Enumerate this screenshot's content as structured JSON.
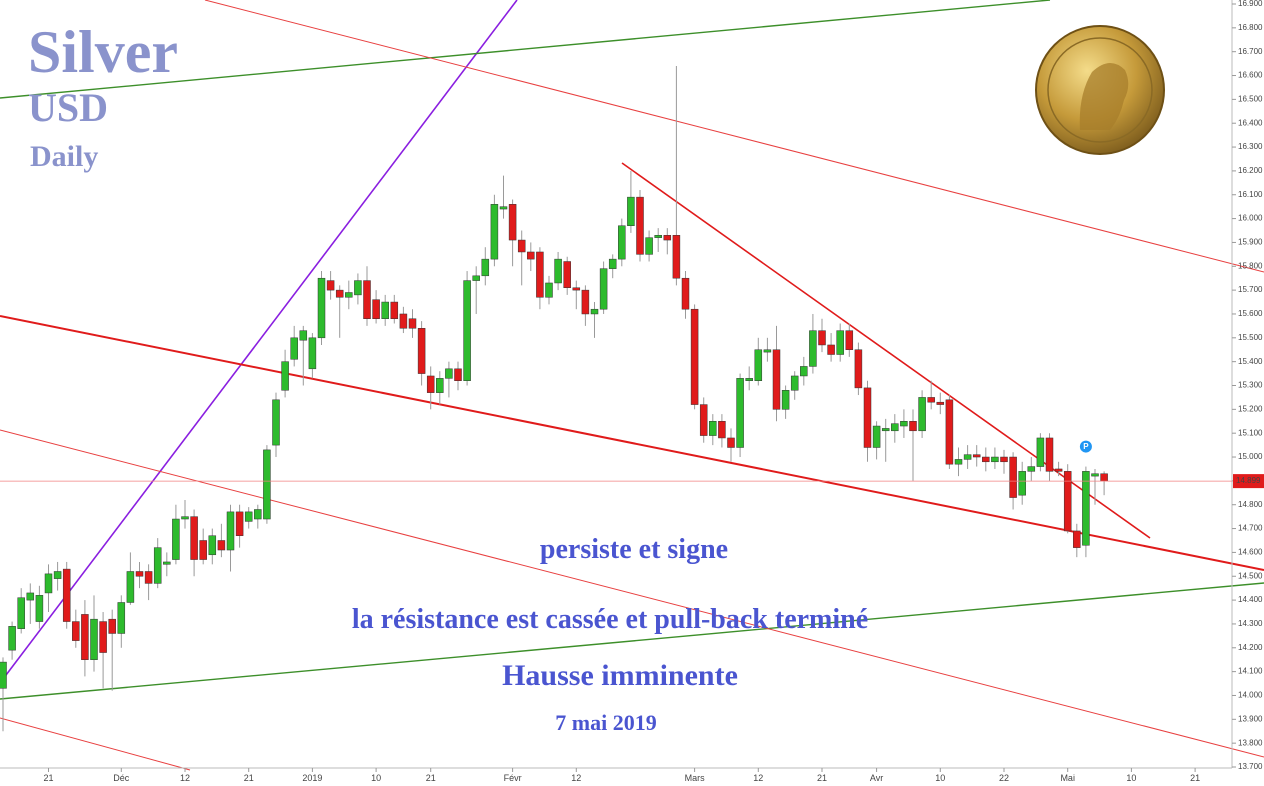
{
  "chart_data": {
    "type": "candlestick",
    "title": "Silver",
    "currency": "USD",
    "interval": "Daily",
    "annotations": [
      "persiste et signe",
      "la résistance est cassée et pull-back terminé",
      "Hausse imminente",
      "7 mai 2019"
    ],
    "marker_label": "P",
    "last_price": 14.899,
    "up_color": "#2dbb2d",
    "down_color": "#e01b1b",
    "ylim": [
      13.7,
      16.9
    ],
    "yticks": [
      {
        "value": 13.7,
        "label": "13.700"
      },
      {
        "value": 13.8,
        "label": "13.800"
      },
      {
        "value": 13.9,
        "label": "13.900"
      },
      {
        "value": 14.0,
        "label": "14.000"
      },
      {
        "value": 14.1,
        "label": "14.100"
      },
      {
        "value": 14.2,
        "label": "14.200"
      },
      {
        "value": 14.3,
        "label": "14.300"
      },
      {
        "value": 14.4,
        "label": "14.400"
      },
      {
        "value": 14.5,
        "label": "14.500"
      },
      {
        "value": 14.6,
        "label": "14.600"
      },
      {
        "value": 14.7,
        "label": "14.700"
      },
      {
        "value": 14.8,
        "label": "14.800"
      },
      {
        "value": 14.9,
        "label": "14.900"
      },
      {
        "value": 15.0,
        "label": "15.000"
      },
      {
        "value": 15.1,
        "label": "15.100"
      },
      {
        "value": 15.2,
        "label": "15.200"
      },
      {
        "value": 15.3,
        "label": "15.300"
      },
      {
        "value": 15.4,
        "label": "15.400"
      },
      {
        "value": 15.5,
        "label": "15.500"
      },
      {
        "value": 15.6,
        "label": "15.600"
      },
      {
        "value": 15.7,
        "label": "15.700"
      },
      {
        "value": 15.8,
        "label": "15.800"
      },
      {
        "value": 15.9,
        "label": "15.900"
      },
      {
        "value": 16.0,
        "label": "16.000"
      },
      {
        "value": 16.1,
        "label": "16.100"
      },
      {
        "value": 16.2,
        "label": "16.200"
      },
      {
        "value": 16.3,
        "label": "16.300"
      },
      {
        "value": 16.4,
        "label": "16.400"
      },
      {
        "value": 16.5,
        "label": "16.500"
      },
      {
        "value": 16.6,
        "label": "16.600"
      },
      {
        "value": 16.7,
        "label": "16.700"
      },
      {
        "value": 16.8,
        "label": "16.800"
      },
      {
        "value": 16.9,
        "label": "16.900"
      }
    ],
    "categories": [
      null,
      null,
      null,
      null,
      null,
      "21",
      null,
      null,
      null,
      null,
      null,
      null,
      null,
      "Déc",
      null,
      null,
      null,
      null,
      null,
      null,
      "12",
      null,
      null,
      null,
      null,
      null,
      null,
      "21",
      null,
      null,
      null,
      null,
      null,
      null,
      "2019",
      null,
      null,
      null,
      null,
      null,
      null,
      "10",
      null,
      null,
      null,
      null,
      null,
      "21",
      null,
      null,
      null,
      null,
      null,
      null,
      null,
      null,
      "Févr",
      null,
      null,
      null,
      null,
      null,
      null,
      "12",
      null,
      null,
      null,
      null,
      null,
      null,
      null,
      null,
      null,
      null,
      null,
      null,
      "Mars",
      null,
      null,
      null,
      null,
      null,
      null,
      "12",
      null,
      null,
      null,
      null,
      null,
      null,
      "21",
      null,
      null,
      null,
      null,
      null,
      "Avr",
      null,
      null,
      null,
      null,
      null,
      null,
      "10",
      null,
      null,
      null,
      null,
      null,
      null,
      "22",
      null,
      null,
      null,
      null,
      null,
      null,
      "Mai",
      null,
      null,
      null,
      null,
      null,
      null,
      "10",
      null,
      null,
      null,
      null,
      null,
      null,
      "21",
      null,
      null,
      null,
      null,
      null
    ],
    "open": [
      14.03,
      14.19,
      14.28,
      14.4,
      14.31,
      14.43,
      14.49,
      14.53,
      14.31,
      14.34,
      14.15,
      14.31,
      14.32,
      14.26,
      14.39,
      14.52,
      14.52,
      14.47,
      14.55,
      14.57,
      14.74,
      14.75,
      14.65,
      14.59,
      14.65,
      14.61,
      14.77,
      14.73,
      14.74,
      14.74,
      15.05,
      15.28,
      15.41,
      15.49,
      15.37,
      15.5,
      15.74,
      15.7,
      15.67,
      15.68,
      15.74,
      15.66,
      15.58,
      15.65,
      15.6,
      15.58,
      15.54,
      15.34,
      15.27,
      15.33,
      15.37,
      15.32,
      15.74,
      15.76,
      15.83,
      16.04,
      16.06,
      15.91,
      15.86,
      15.86,
      15.67,
      15.73,
      15.82,
      15.71,
      15.7,
      15.6,
      15.62,
      15.79,
      15.83,
      15.97,
      16.09,
      15.85,
      15.92,
      15.93,
      15.93,
      15.75,
      15.62,
      15.22,
      15.09,
      15.15,
      15.08,
      15.04,
      15.32,
      15.32,
      15.44,
      15.45,
      15.2,
      15.28,
      15.34,
      15.38,
      15.53,
      15.47,
      15.43,
      15.53,
      15.45,
      15.29,
      15.04,
      15.11,
      15.11,
      15.13,
      15.15,
      15.11,
      15.25,
      15.23,
      15.24,
      14.97,
      14.99,
      15.01,
      15.0,
      14.98,
      15.0,
      15.0,
      14.84,
      14.94,
      14.96,
      15.08,
      14.95,
      14.94,
      14.69,
      14.63,
      14.92,
      14.93,
      null,
      null,
      null,
      null,
      null,
      null,
      null,
      null,
      null,
      null,
      null,
      null,
      null,
      null,
      null
    ],
    "high": [
      14.16,
      14.31,
      14.45,
      14.47,
      14.46,
      14.55,
      14.56,
      14.56,
      14.36,
      14.4,
      14.42,
      14.35,
      14.36,
      14.42,
      14.6,
      14.56,
      14.55,
      14.66,
      14.6,
      14.8,
      14.82,
      14.78,
      14.7,
      14.7,
      14.72,
      14.8,
      14.8,
      14.79,
      14.8,
      15.05,
      15.27,
      15.45,
      15.55,
      15.55,
      15.52,
      15.78,
      15.78,
      15.72,
      15.74,
      15.77,
      15.8,
      15.7,
      15.68,
      15.68,
      15.63,
      15.62,
      15.57,
      15.38,
      15.36,
      15.4,
      15.4,
      15.78,
      15.8,
      15.88,
      16.1,
      16.18,
      16.08,
      15.95,
      15.9,
      15.88,
      15.76,
      15.86,
      15.84,
      15.74,
      15.72,
      15.65,
      15.82,
      15.85,
      16.0,
      16.2,
      16.12,
      15.95,
      15.96,
      15.96,
      16.64,
      15.78,
      15.64,
      15.25,
      15.18,
      15.18,
      15.12,
      15.35,
      15.38,
      15.5,
      15.5,
      15.55,
      15.3,
      15.36,
      15.42,
      15.6,
      15.58,
      15.52,
      15.56,
      15.56,
      15.48,
      15.32,
      15.15,
      15.16,
      15.18,
      15.2,
      15.2,
      15.28,
      15.32,
      15.27,
      15.26,
      15.04,
      15.05,
      15.05,
      15.04,
      15.04,
      15.03,
      15.02,
      14.98,
      15.0,
      15.1,
      15.1,
      14.98,
      14.97,
      14.72,
      14.96,
      14.95,
      14.94,
      null,
      null,
      null,
      null,
      null,
      null,
      null,
      null,
      null,
      null,
      null,
      null,
      null,
      null,
      null
    ],
    "low": [
      13.85,
      14.15,
      14.26,
      14.3,
      14.28,
      14.35,
      14.44,
      14.28,
      14.2,
      14.08,
      14.1,
      14.03,
      14.02,
      14.2,
      14.38,
      14.45,
      14.4,
      14.45,
      14.5,
      14.55,
      14.7,
      14.5,
      14.55,
      14.55,
      14.58,
      14.52,
      14.62,
      14.7,
      14.7,
      14.72,
      15.0,
      15.25,
      15.38,
      15.3,
      15.33,
      15.47,
      15.66,
      15.5,
      15.62,
      15.64,
      15.55,
      15.56,
      15.55,
      15.56,
      15.52,
      15.5,
      15.3,
      15.2,
      15.22,
      15.25,
      15.28,
      15.3,
      15.6,
      15.72,
      15.8,
      16.0,
      15.8,
      15.72,
      15.78,
      15.62,
      15.64,
      15.7,
      15.68,
      15.62,
      15.55,
      15.5,
      15.6,
      15.75,
      15.8,
      15.94,
      15.82,
      15.82,
      15.86,
      15.85,
      15.72,
      15.58,
      15.2,
      15.06,
      15.05,
      15.04,
      14.98,
      15.0,
      15.28,
      15.3,
      15.4,
      15.15,
      15.16,
      15.24,
      15.3,
      15.35,
      15.44,
      15.4,
      15.4,
      15.42,
      15.26,
      14.98,
      14.99,
      14.98,
      15.06,
      15.08,
      14.9,
      15.08,
      15.2,
      15.18,
      14.95,
      14.92,
      14.95,
      14.96,
      14.94,
      14.95,
      14.93,
      14.78,
      14.8,
      14.9,
      14.94,
      14.9,
      14.92,
      14.68,
      14.58,
      14.58,
      14.8,
      14.84,
      null,
      null,
      null,
      null,
      null,
      null,
      null,
      null,
      null,
      null,
      null,
      null,
      null,
      null,
      null
    ],
    "close": [
      14.14,
      14.29,
      14.41,
      14.43,
      14.42,
      14.51,
      14.52,
      14.31,
      14.23,
      14.15,
      14.32,
      14.18,
      14.26,
      14.39,
      14.52,
      14.5,
      14.47,
      14.62,
      14.56,
      14.74,
      14.75,
      14.57,
      14.57,
      14.67,
      14.61,
      14.77,
      14.67,
      14.77,
      14.78,
      15.03,
      15.24,
      15.4,
      15.5,
      15.53,
      15.5,
      15.75,
      15.7,
      15.67,
      15.69,
      15.74,
      15.58,
      15.58,
      15.65,
      15.58,
      15.54,
      15.54,
      15.35,
      15.27,
      15.33,
      15.37,
      15.32,
      15.74,
      15.76,
      15.83,
      16.06,
      16.05,
      15.91,
      15.86,
      15.83,
      15.67,
      15.73,
      15.83,
      15.71,
      15.7,
      15.6,
      15.62,
      15.79,
      15.83,
      15.97,
      16.09,
      15.85,
      15.92,
      15.93,
      15.91,
      15.75,
      15.62,
      15.22,
      15.09,
      15.15,
      15.08,
      15.04,
      15.33,
      15.33,
      15.45,
      15.45,
      15.2,
      15.28,
      15.34,
      15.38,
      15.53,
      15.47,
      15.43,
      15.53,
      15.45,
      15.29,
      15.04,
      15.13,
      15.12,
      15.14,
      15.15,
      15.11,
      15.25,
      15.23,
      15.22,
      14.97,
      14.99,
      15.01,
      15.0,
      14.98,
      15.0,
      14.98,
      14.83,
      14.94,
      14.96,
      15.08,
      14.94,
      14.94,
      14.69,
      14.62,
      14.94,
      14.93,
      14.899,
      null,
      null,
      null,
      null,
      null,
      null,
      null,
      null,
      null,
      null,
      null,
      null,
      null,
      null,
      null
    ]
  }
}
